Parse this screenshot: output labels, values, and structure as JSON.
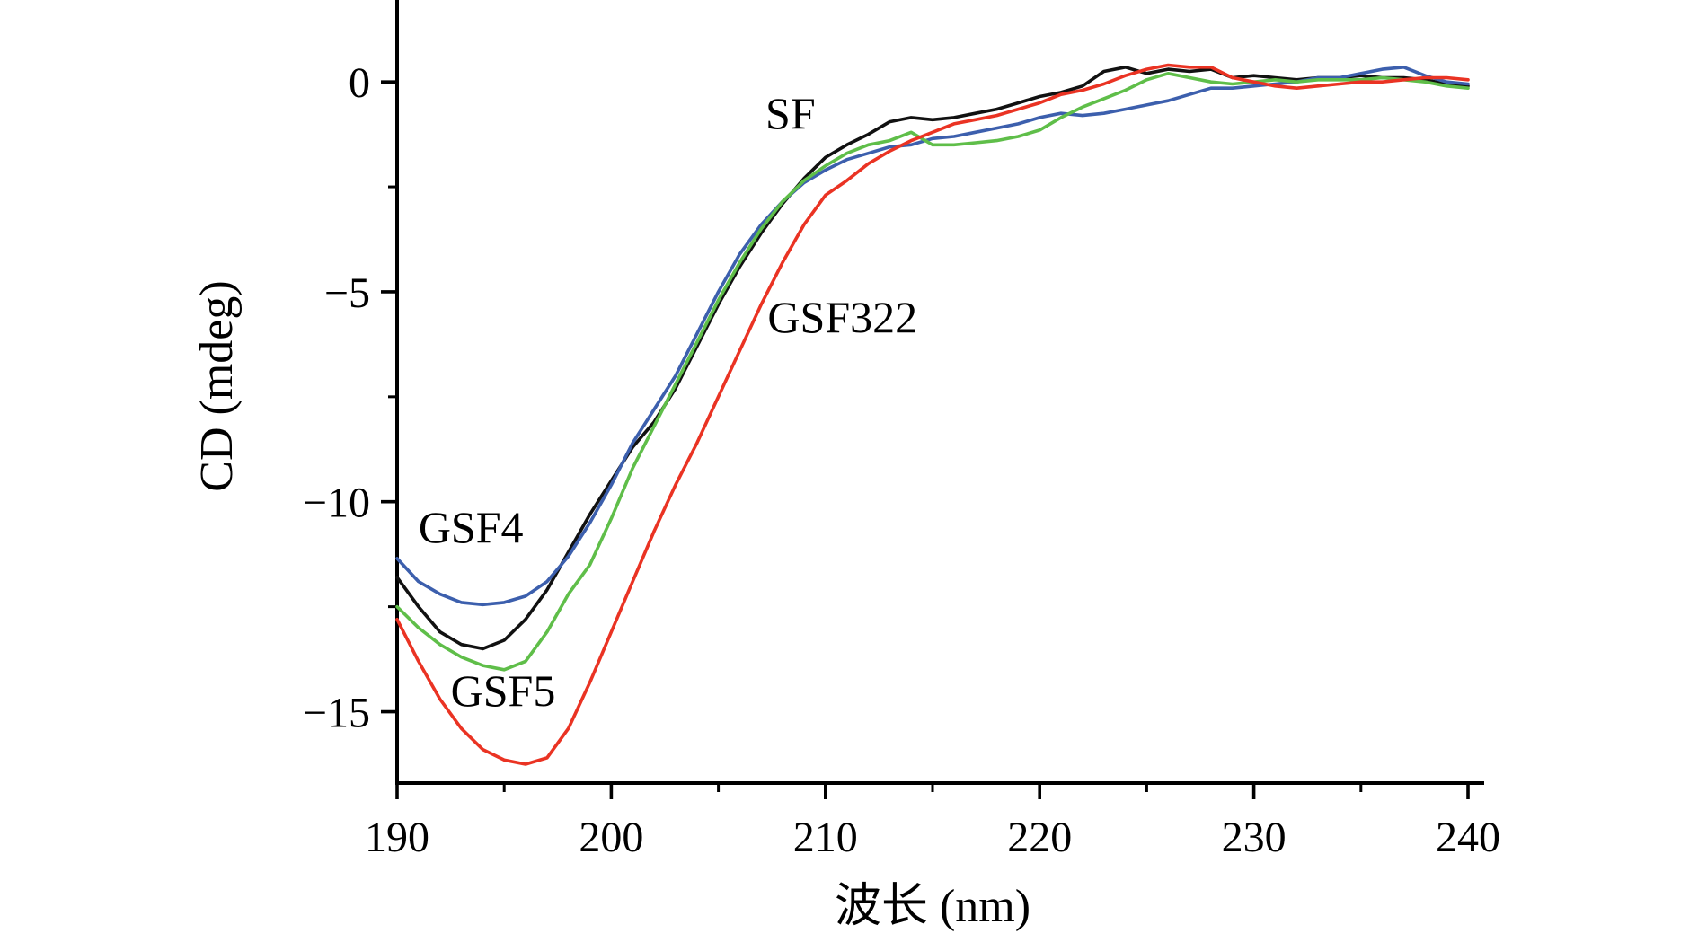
{
  "figure": {
    "background": "#ffffff",
    "axis_color": "#000000"
  },
  "chart_data": {
    "type": "line",
    "title": "",
    "xlabel": "波长 (nm)",
    "ylabel": "CD (mdeg)",
    "xlim": [
      190,
      240
    ],
    "ylim": [
      -16.7,
      1.95
    ],
    "grid": false,
    "legend_position": "inline-annotations",
    "x_ticks": [
      190,
      200,
      210,
      220,
      230,
      240
    ],
    "x_tick_labels": [
      "190",
      "200",
      "210",
      "220",
      "230",
      "240"
    ],
    "x_minor_ticks": [
      195,
      205,
      215,
      225,
      235
    ],
    "y_ticks": [
      0,
      -5,
      -10,
      -15
    ],
    "y_tick_labels": [
      "0",
      "−5",
      "−10",
      "−15"
    ],
    "y_minor_ticks": [
      -2.5,
      -7.5,
      -12.5
    ],
    "x": [
      190,
      191,
      192,
      193,
      194,
      195,
      196,
      197,
      198,
      199,
      200,
      201,
      202,
      203,
      204,
      205,
      206,
      207,
      208,
      209,
      210,
      211,
      212,
      213,
      214,
      215,
      216,
      217,
      218,
      219,
      220,
      221,
      222,
      223,
      224,
      225,
      226,
      227,
      228,
      229,
      230,
      231,
      232,
      233,
      234,
      235,
      236,
      237,
      238,
      239,
      240
    ],
    "series": [
      {
        "name": "SF",
        "color": "#111111",
        "values": [
          -11.8,
          -12.5,
          -13.1,
          -13.4,
          -13.5,
          -13.3,
          -12.8,
          -12.1,
          -11.2,
          -10.3,
          -9.5,
          -8.7,
          -8.1,
          -7.3,
          -6.3,
          -5.3,
          -4.4,
          -3.6,
          -2.9,
          -2.3,
          -1.8,
          -1.5,
          -1.25,
          -0.95,
          -0.85,
          -0.9,
          -0.85,
          -0.75,
          -0.65,
          -0.5,
          -0.35,
          -0.25,
          -0.1,
          0.25,
          0.35,
          0.2,
          0.3,
          0.25,
          0.3,
          0.1,
          0.15,
          0.1,
          0.05,
          0.1,
          0.1,
          0.15,
          0.1,
          0.1,
          0.05,
          -0.05,
          -0.1
        ]
      },
      {
        "name": "GSF4",
        "color": "#3c5fad",
        "values": [
          -11.35,
          -11.9,
          -12.2,
          -12.4,
          -12.45,
          -12.4,
          -12.25,
          -11.9,
          -11.3,
          -10.5,
          -9.6,
          -8.6,
          -7.8,
          -7.0,
          -6.0,
          -5.0,
          -4.1,
          -3.4,
          -2.85,
          -2.4,
          -2.1,
          -1.85,
          -1.7,
          -1.55,
          -1.5,
          -1.35,
          -1.3,
          -1.2,
          -1.1,
          -1.0,
          -0.85,
          -0.75,
          -0.8,
          -0.75,
          -0.65,
          -0.55,
          -0.45,
          -0.3,
          -0.15,
          -0.15,
          -0.1,
          -0.05,
          0.0,
          0.1,
          0.1,
          0.2,
          0.3,
          0.35,
          0.15,
          0.0,
          -0.05
        ]
      },
      {
        "name": "GSF5",
        "color": "#5fbe49",
        "values": [
          -12.5,
          -13.0,
          -13.4,
          -13.7,
          -13.9,
          -14.0,
          -13.8,
          -13.1,
          -12.2,
          -11.5,
          -10.4,
          -9.2,
          -8.2,
          -7.2,
          -6.2,
          -5.2,
          -4.3,
          -3.5,
          -2.85,
          -2.35,
          -2.0,
          -1.7,
          -1.5,
          -1.4,
          -1.2,
          -1.5,
          -1.5,
          -1.45,
          -1.4,
          -1.3,
          -1.15,
          -0.85,
          -0.6,
          -0.4,
          -0.2,
          0.05,
          0.2,
          0.1,
          0.0,
          -0.05,
          0.0,
          0.05,
          0.0,
          0.05,
          0.05,
          0.05,
          0.1,
          0.05,
          0.0,
          -0.1,
          -0.15
        ]
      },
      {
        "name": "GSF322",
        "color": "#ea3323",
        "values": [
          -12.8,
          -13.8,
          -14.7,
          -15.4,
          -15.9,
          -16.15,
          -16.25,
          -16.1,
          -15.4,
          -14.3,
          -13.1,
          -11.9,
          -10.7,
          -9.6,
          -8.6,
          -7.5,
          -6.4,
          -5.3,
          -4.3,
          -3.4,
          -2.7,
          -2.35,
          -1.95,
          -1.65,
          -1.4,
          -1.2,
          -1.0,
          -0.9,
          -0.8,
          -0.65,
          -0.5,
          -0.3,
          -0.2,
          -0.05,
          0.15,
          0.3,
          0.4,
          0.35,
          0.35,
          0.1,
          0.0,
          -0.1,
          -0.15,
          -0.1,
          -0.05,
          0.0,
          0.0,
          0.05,
          0.1,
          0.1,
          0.05
        ]
      }
    ],
    "annotations": [
      {
        "text": "SF",
        "x": 207.2,
        "y": -0.75,
        "anchor": "start"
      },
      {
        "text": "GSF322",
        "x": 207.3,
        "y": -5.6,
        "anchor": "start"
      },
      {
        "text": "GSF4",
        "x": 191.0,
        "y": -10.6,
        "anchor": "start"
      },
      {
        "text": "GSF5",
        "x": 192.5,
        "y": -14.5,
        "anchor": "start"
      }
    ]
  }
}
